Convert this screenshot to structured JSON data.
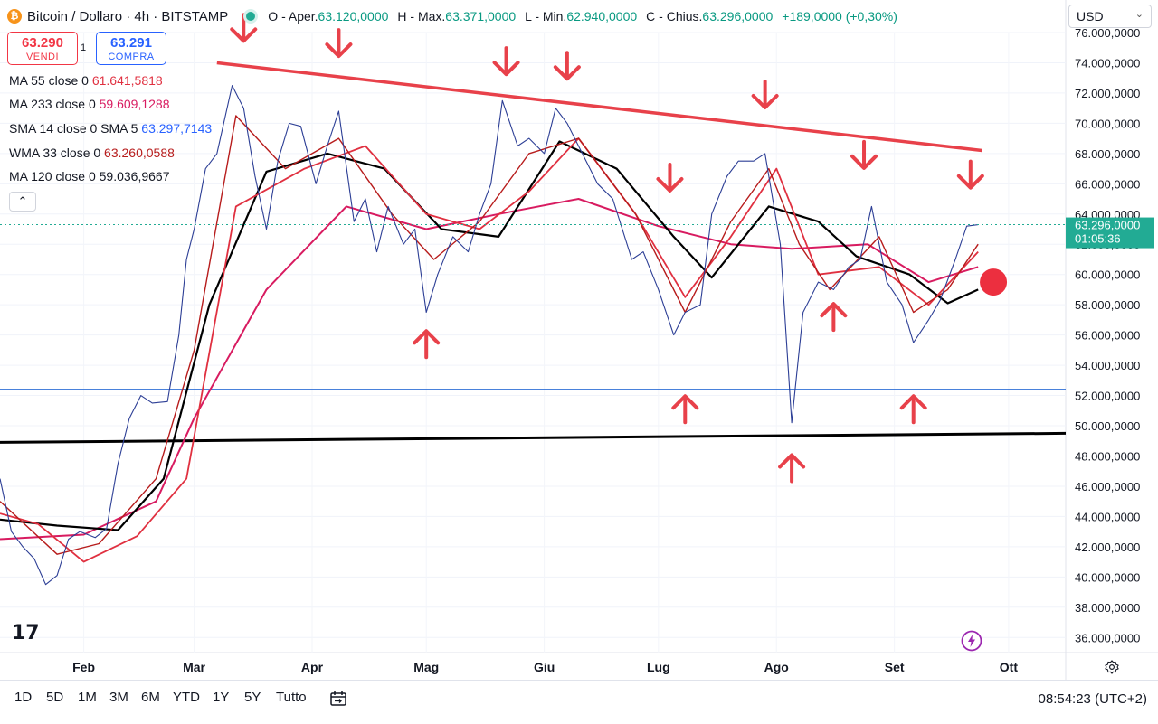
{
  "header": {
    "title": "Bitcoin / Dollaro · 4h · BITSTAMP",
    "ohlc": [
      {
        "label": "O - Aper.",
        "value": "63.120,0000"
      },
      {
        "label": "H - Max.",
        "value": "63.371,0000"
      },
      {
        "label": "L - Min.",
        "value": "62.940,0000"
      },
      {
        "label": "C - Chius.",
        "value": "63.296,0000"
      }
    ],
    "change": "+189,0000 (+0,30%)",
    "currency": "USD"
  },
  "trade": {
    "sell_price": "63.290",
    "sell_label": "VENDI",
    "spread": "1",
    "buy_price": "63.291",
    "buy_label": "COMPRA"
  },
  "indicators": [
    {
      "name": "MA 55 close 0",
      "value": "61.641,5818",
      "color": "#e03040"
    },
    {
      "name": "MA 233 close 0",
      "value": "59.609,1288",
      "color": "#d81b60"
    },
    {
      "name": "SMA 14 close 0 SMA 5",
      "value": "63.297,7143",
      "color": "#2962ff"
    },
    {
      "name": "WMA 33 close 0",
      "value": "63.260,0588",
      "color": "#b71c1c"
    },
    {
      "name": "MA 120 close 0",
      "value": "59.036,9667",
      "color": "#131722"
    }
  ],
  "price_badge": {
    "price": "63.296,0000",
    "countdown": "01:05:36",
    "color": "#22ab94"
  },
  "timeframes": [
    "1D",
    "5D",
    "1M",
    "3M",
    "6M",
    "YTD",
    "1Y",
    "5Y",
    "Tutto"
  ],
  "clock": "08:54:23 (UTC+2)",
  "icons": [
    "bitcoin-icon",
    "market-status-dot-icon",
    "collapse-icon",
    "tradingview-logo-icon",
    "bolt-icon",
    "gear-icon",
    "calendar-range-icon"
  ],
  "colors": {
    "resistance": "#e8414a",
    "support_blue": "#2f6fd6",
    "support_black": "#000000",
    "arrow": "#e8414a",
    "up": "#089981",
    "down": "#f23645"
  },
  "chart_data": {
    "type": "line",
    "yaxis": {
      "ticks": [
        "36.000,0000",
        "38.000,0000",
        "40.000,0000",
        "42.000,0000",
        "44.000,0000",
        "46.000,0000",
        "48.000,0000",
        "50.000,0000",
        "52.000,0000",
        "54.000,0000",
        "56.000,0000",
        "58.000,0000",
        "60.000,0000",
        "62.000,0000",
        "64.000,0000",
        "66.000,0000",
        "68.000,0000",
        "70.000,0000",
        "72.000,0000",
        "74.000,0000",
        "76.000,0000"
      ],
      "tick_values": [
        36000,
        38000,
        40000,
        42000,
        44000,
        46000,
        48000,
        50000,
        52000,
        54000,
        56000,
        58000,
        60000,
        62000,
        64000,
        66000,
        68000,
        70000,
        72000,
        74000,
        76000
      ],
      "range": [
        35000,
        76000
      ]
    },
    "xaxis": {
      "ticks": [
        "Feb",
        "Mar",
        "Apr",
        "Mag",
        "Giu",
        "Lug",
        "Ago",
        "Set",
        "Ott"
      ],
      "tick_dates": [
        "2024-02-01",
        "2024-03-01",
        "2024-04-01",
        "2024-05-01",
        "2024-06-01",
        "2024-07-01",
        "2024-08-01",
        "2024-09-01",
        "2024-10-01"
      ],
      "range": [
        "2024-01-10",
        "2024-10-16"
      ]
    },
    "series": [
      {
        "key": "price",
        "x": [
          "2024-01-10",
          "2024-01-13",
          "2024-01-16",
          "2024-01-19",
          "2024-01-22",
          "2024-01-25",
          "2024-01-28",
          "2024-01-31",
          "2024-02-04",
          "2024-02-07",
          "2024-02-10",
          "2024-02-13",
          "2024-02-16",
          "2024-02-19",
          "2024-02-23",
          "2024-02-26",
          "2024-02-28",
          "2024-03-01",
          "2024-03-04",
          "2024-03-07",
          "2024-03-11",
          "2024-03-14",
          "2024-03-17",
          "2024-03-20",
          "2024-03-23",
          "2024-03-26",
          "2024-03-29",
          "2024-04-02",
          "2024-04-05",
          "2024-04-08",
          "2024-04-12",
          "2024-04-15",
          "2024-04-18",
          "2024-04-21",
          "2024-04-25",
          "2024-04-28",
          "2024-05-01",
          "2024-05-04",
          "2024-05-08",
          "2024-05-12",
          "2024-05-15",
          "2024-05-18",
          "2024-05-21",
          "2024-05-25",
          "2024-05-28",
          "2024-06-01",
          "2024-06-04",
          "2024-06-07",
          "2024-06-11",
          "2024-06-15",
          "2024-06-19",
          "2024-06-24",
          "2024-06-27",
          "2024-07-01",
          "2024-07-05",
          "2024-07-08",
          "2024-07-12",
          "2024-07-15",
          "2024-07-19",
          "2024-07-22",
          "2024-07-26",
          "2024-07-29",
          "2024-08-02",
          "2024-08-05",
          "2024-08-08",
          "2024-08-12",
          "2024-08-16",
          "2024-08-20",
          "2024-08-23",
          "2024-08-26",
          "2024-08-30",
          "2024-09-03",
          "2024-09-06",
          "2024-09-10",
          "2024-09-13",
          "2024-09-17",
          "2024-09-20",
          "2024-09-23"
        ],
        "y": [
          46500,
          43000,
          42000,
          41200,
          39500,
          40100,
          42500,
          43000,
          42600,
          43200,
          47500,
          50500,
          52000,
          51500,
          51600,
          56000,
          61000,
          63000,
          67000,
          68000,
          72500,
          71000,
          66500,
          63000,
          67500,
          70000,
          69800,
          66000,
          68500,
          70800,
          63500,
          65000,
          61500,
          64500,
          62000,
          63000,
          57500,
          60000,
          62500,
          61500,
          64000,
          66000,
          71500,
          68500,
          69000,
          68000,
          71000,
          70000,
          68000,
          66000,
          65000,
          61000,
          61500,
          59000,
          56000,
          57500,
          58000,
          64000,
          66500,
          67500,
          67500,
          68000,
          62000,
          50200,
          57500,
          59500,
          59000,
          60500,
          61000,
          64500,
          59500,
          58000,
          55500,
          57000,
          58300,
          61000,
          63200,
          63296
        ]
      },
      {
        "key": "ma233",
        "x": [
          "2024-01-10",
          "2024-02-01",
          "2024-02-20",
          "2024-03-01",
          "2024-03-20",
          "2024-04-10",
          "2024-05-01",
          "2024-05-20",
          "2024-06-10",
          "2024-07-01",
          "2024-07-20",
          "2024-08-05",
          "2024-08-25",
          "2024-09-10",
          "2024-09-23"
        ],
        "y": [
          42500,
          42800,
          45000,
          50500,
          59000,
          64500,
          63000,
          64000,
          65000,
          63200,
          62000,
          61700,
          62000,
          59500,
          60500
        ]
      },
      {
        "key": "ma120",
        "x": [
          "2024-01-10",
          "2024-01-25",
          "2024-02-10",
          "2024-02-22",
          "2024-03-05",
          "2024-03-20",
          "2024-04-05",
          "2024-04-20",
          "2024-05-05",
          "2024-05-20",
          "2024-06-05",
          "2024-06-20",
          "2024-07-05",
          "2024-07-15",
          "2024-07-30",
          "2024-08-12",
          "2024-08-22",
          "2024-09-05",
          "2024-09-15",
          "2024-09-23"
        ],
        "y": [
          43800,
          43400,
          43100,
          46500,
          58000,
          66800,
          68000,
          67000,
          63000,
          62500,
          68800,
          67000,
          62500,
          59800,
          64500,
          63500,
          61200,
          60000,
          58100,
          59000
        ]
      },
      {
        "key": "ma55",
        "x": [
          "2024-01-10",
          "2024-01-20",
          "2024-02-01",
          "2024-02-15",
          "2024-02-28",
          "2024-03-12",
          "2024-03-30",
          "2024-04-15",
          "2024-05-01",
          "2024-05-15",
          "2024-05-28",
          "2024-06-10",
          "2024-06-25",
          "2024-07-08",
          "2024-07-20",
          "2024-08-01",
          "2024-08-12",
          "2024-08-28",
          "2024-09-10",
          "2024-09-23"
        ],
        "y": [
          44200,
          43500,
          41000,
          42700,
          46500,
          64500,
          67000,
          68500,
          64000,
          63000,
          65500,
          69000,
          64000,
          58500,
          62500,
          67000,
          60000,
          60500,
          58000,
          61500
        ]
      },
      {
        "key": "wma33",
        "x": [
          "2024-01-10",
          "2024-01-25",
          "2024-02-05",
          "2024-02-20",
          "2024-03-01",
          "2024-03-12",
          "2024-03-25",
          "2024-04-08",
          "2024-04-22",
          "2024-05-03",
          "2024-05-15",
          "2024-05-28",
          "2024-06-10",
          "2024-06-25",
          "2024-07-08",
          "2024-07-20",
          "2024-07-30",
          "2024-08-07",
          "2024-08-15",
          "2024-08-28",
          "2024-09-06",
          "2024-09-15",
          "2024-09-23"
        ],
        "y": [
          45000,
          41500,
          42200,
          46500,
          55000,
          70500,
          67000,
          69000,
          64000,
          61000,
          63500,
          68000,
          69000,
          64000,
          57500,
          63500,
          67000,
          62000,
          59000,
          62500,
          57500,
          59000,
          62000
        ]
      }
    ],
    "annotations": {
      "resistance_line": {
        "x": [
          "2024-03-07",
          "2024-09-24"
        ],
        "y": [
          74000,
          68200
        ]
      },
      "support_blue": {
        "x": [
          "2024-01-10",
          "2024-10-16"
        ],
        "y": [
          52400,
          52400
        ]
      },
      "support_black": {
        "x": [
          "2024-01-10",
          "2024-10-16"
        ],
        "y": [
          48900,
          49500
        ]
      },
      "down_arrows": [
        {
          "x": "2024-03-14",
          "y": 75500
        },
        {
          "x": "2024-04-08",
          "y": 74500
        },
        {
          "x": "2024-05-22",
          "y": 73300
        },
        {
          "x": "2024-06-07",
          "y": 73000
        },
        {
          "x": "2024-07-04",
          "y": 65600
        },
        {
          "x": "2024-07-29",
          "y": 71100
        },
        {
          "x": "2024-08-24",
          "y": 67100
        },
        {
          "x": "2024-09-21",
          "y": 65800
        }
      ],
      "up_arrows": [
        {
          "x": "2024-05-01",
          "y": 56200
        },
        {
          "x": "2024-07-08",
          "y": 51900
        },
        {
          "x": "2024-08-05",
          "y": 48000
        },
        {
          "x": "2024-09-06",
          "y": 51900
        },
        {
          "x": "2024-08-16",
          "y": 58000
        }
      ],
      "marker_dot": {
        "x": "2024-09-27",
        "y": 59500
      }
    }
  }
}
